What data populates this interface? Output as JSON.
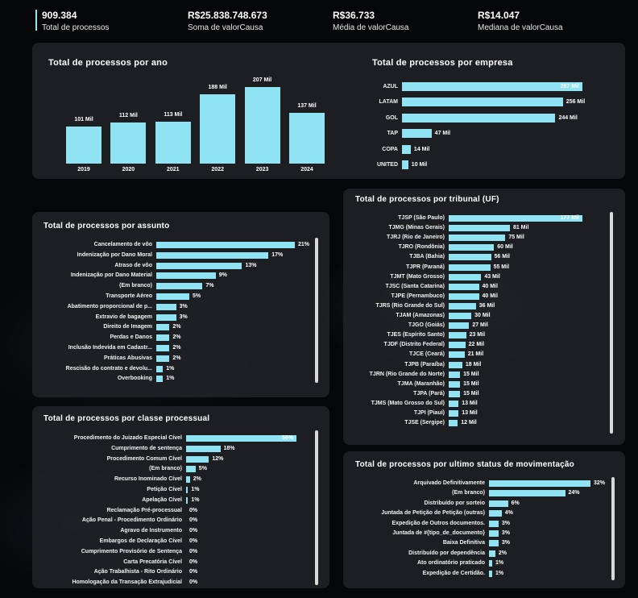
{
  "kpis": [
    {
      "value": "909.384",
      "label": "Total de processos"
    },
    {
      "value": "R$25.838.748.673",
      "label": "Soma de valorCausa"
    },
    {
      "value": "R$36.733",
      "label": "Média de valorCausa"
    },
    {
      "value": "R$14.047",
      "label": "Mediana de valorCausa"
    }
  ],
  "colors": {
    "bar": "#8fe3f2",
    "card": "#202225",
    "background": "#050607"
  },
  "chart_data": [
    {
      "id": "ano",
      "type": "bar",
      "title": "Total de processos por ano",
      "categories": [
        "2019",
        "2020",
        "2021",
        "2022",
        "2023",
        "2024"
      ],
      "values": [
        101,
        112,
        113,
        188,
        207,
        137
      ],
      "data_labels": [
        "101 Mil",
        "112 Mil",
        "113 Mil",
        "188 Mil",
        "207 Mil",
        "137 Mil"
      ],
      "ylim": [
        0,
        207
      ]
    },
    {
      "id": "empresa",
      "type": "bar",
      "orientation": "horizontal",
      "title": "Total de processos por empresa",
      "categories": [
        "AZUL",
        "LATAM",
        "GOL",
        "TAP",
        "COPA",
        "UNITED"
      ],
      "values": [
        287,
        256,
        244,
        47,
        14,
        10
      ],
      "data_labels": [
        "287 Mil",
        "256 Mil",
        "244 Mil",
        "47 Mil",
        "14 Mil",
        "10 Mil"
      ]
    },
    {
      "id": "assunto",
      "type": "bar",
      "orientation": "horizontal",
      "title": "Total de processos por assunto",
      "categories": [
        "Cancelamento de vôo",
        "Indenização por Dano Moral",
        "Atraso de vôo",
        "Indenização por Dano Material",
        "(Em branco)",
        "Transporte Aéreo",
        "Abatimento proporcional de p...",
        "Extravio de bagagem",
        "Direito de Imagem",
        "Perdas e Danos",
        "Inclusão Indevida em Cadastr...",
        "Práticas Abusivas",
        "Rescisão do contrato e devolu...",
        "Overbooking"
      ],
      "values": [
        21,
        17,
        13,
        9,
        7,
        5,
        3,
        3,
        2,
        2,
        2,
        2,
        1,
        1
      ],
      "data_labels": [
        "21%",
        "17%",
        "13%",
        "9%",
        "7%",
        "5%",
        "3%",
        "3%",
        "2%",
        "2%",
        "2%",
        "2%",
        "1%",
        "1%"
      ]
    },
    {
      "id": "tribunal",
      "type": "bar",
      "orientation": "horizontal",
      "title": "Total de processos por tribunal (UF)",
      "categories": [
        "TJSP (São Paulo)",
        "TJMG (Minas Gerais)",
        "TJRJ (Rio de Janeiro)",
        "TJRO (Rondônia)",
        "TJBA (Bahia)",
        "TJPR (Paraná)",
        "TJMT (Mato Grosso)",
        "TJSC (Santa Catarina)",
        "TJPE (Pernambuco)",
        "TJRS (Rio Grande do Sul)",
        "TJAM (Amazonas)",
        "TJGO (Goiás)",
        "TJES (Espírito Santo)",
        "TJDF (Distrito Federal)",
        "TJCE (Ceará)",
        "TJPB (Paraíba)",
        "TJRN (Rio Grande do Norte)",
        "TJMA (Maranhão)",
        "TJPA (Pará)",
        "TJMS (Mato Grosso do Sul)",
        "TJPI (Piauí)",
        "TJSE (Sergipe)"
      ],
      "values": [
        177,
        81,
        75,
        60,
        56,
        55,
        43,
        40,
        40,
        36,
        30,
        27,
        23,
        22,
        21,
        18,
        15,
        15,
        15,
        13,
        13,
        12
      ],
      "data_labels": [
        "177 Mil",
        "81 Mil",
        "75 Mil",
        "60 Mil",
        "56 Mil",
        "55 Mil",
        "43 Mil",
        "40 Mil",
        "40 Mil",
        "36 Mil",
        "30 Mil",
        "27 Mil",
        "23 Mil",
        "22 Mil",
        "21 Mil",
        "18 Mil",
        "15 Mil",
        "15 Mil",
        "15 Mil",
        "13 Mil",
        "13 Mil",
        "12 Mil"
      ]
    },
    {
      "id": "classe",
      "type": "bar",
      "orientation": "horizontal",
      "title": "Total de processos por classe processual",
      "categories": [
        "Procedimento do Juizado Especial Cível",
        "Cumprimento de sentença",
        "Procedimento Comum Cível",
        "(Em branco)",
        "Recurso Inominado Cível",
        "Petição Cível",
        "Apelação Cível",
        "Reclamação Pré-processual",
        "Ação Penal - Procedimento Ordinário",
        "Agravo de Instrumento",
        "Embargos de Declaração Cível",
        "Cumprimento Provisório de Sentença",
        "Carta Precatória Cível",
        "Ação Trabalhista - Rito Ordinário",
        "Homologação da Transação Extrajudicial"
      ],
      "values": [
        58,
        18,
        12,
        5,
        2,
        1,
        1,
        0,
        0,
        0,
        0,
        0,
        0,
        0,
        0
      ],
      "data_labels": [
        "58%",
        "18%",
        "12%",
        "5%",
        "2%",
        "1%",
        "1%",
        "0%",
        "0%",
        "0%",
        "0%",
        "0%",
        "0%",
        "0%",
        "0%"
      ]
    },
    {
      "id": "status",
      "type": "bar",
      "orientation": "horizontal",
      "title": "Total de processos por ultimo status de movimentação",
      "categories": [
        "Arquivado Definitivamente",
        "(Em branco)",
        "Distribuído por sorteio",
        "Juntada de Petição de Petição (outras)",
        "Expedição de Outros documentos.",
        "Juntada de #{tipo_de_documento}",
        "Baixa Definitiva",
        "Distribuído por dependência",
        "Ato ordinatório praticado",
        "Expedição de Certidão."
      ],
      "values": [
        32,
        24,
        6,
        4,
        3,
        3,
        3,
        2,
        1,
        1
      ],
      "data_labels": [
        "32%",
        "24%",
        "6%",
        "4%",
        "3%",
        "3%",
        "3%",
        "2%",
        "1%",
        "1%"
      ]
    }
  ]
}
